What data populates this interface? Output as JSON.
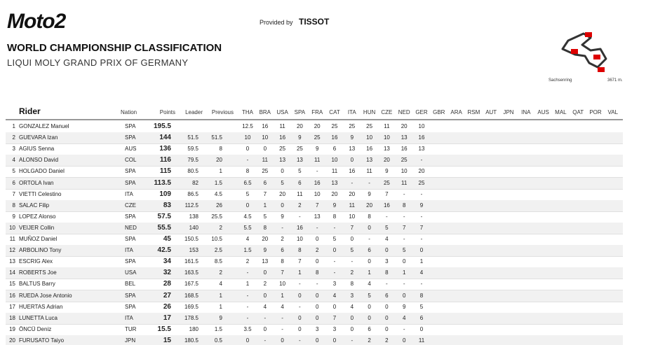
{
  "header": {
    "logo": "Moto2",
    "provided_by": "Provided by",
    "sponsor": "TISSOT",
    "title": "WORLD CHAMPIONSHIP CLASSIFICATION",
    "subtitle": "LIQUI MOLY GRAND PRIX OF GERMANY",
    "track": "Sachsenring",
    "track_length": "3671 m."
  },
  "table": {
    "columns": {
      "rider": "Rider",
      "nation": "Nation",
      "points": "Points",
      "leader": "Leader",
      "previous": "Previous",
      "races": [
        "THA",
        "BRA",
        "USA",
        "SPA",
        "FRA",
        "CAT",
        "ITA",
        "HUN",
        "CZE",
        "NED",
        "GER",
        "GBR",
        "ARA",
        "RSM",
        "AUT",
        "JPN",
        "INA",
        "AUS",
        "MAL",
        "QAT",
        "POR",
        "VAL"
      ]
    },
    "rows": [
      {
        "pos": 1,
        "rider": "GONZALEZ Manuel",
        "nation": "SPA",
        "points": 195.5,
        "results": [
          12.5,
          16,
          11,
          20,
          20,
          25,
          25,
          25,
          11,
          20,
          10
        ]
      },
      {
        "pos": 2,
        "rider": "GUEVARA Izan",
        "nation": "SPA",
        "points": 144,
        "leader": 51.5,
        "previous": 51.5,
        "results": [
          10,
          10,
          16,
          9,
          25,
          16,
          9,
          10,
          10,
          13,
          16
        ]
      },
      {
        "pos": 3,
        "rider": "AGIUS Senna",
        "nation": "AUS",
        "points": 136,
        "leader": 59.5,
        "previous": 8,
        "results": [
          0,
          0,
          25,
          25,
          9,
          6,
          13,
          16,
          13,
          16,
          13
        ]
      },
      {
        "pos": 4,
        "rider": "ALONSO David",
        "nation": "COL",
        "points": 116,
        "leader": 79.5,
        "previous": 20,
        "results": [
          "-",
          11,
          13,
          13,
          11,
          10,
          0,
          13,
          20,
          25,
          "-"
        ]
      },
      {
        "pos": 5,
        "rider": "HOLGADO Daniel",
        "nation": "SPA",
        "points": 115,
        "leader": 80.5,
        "previous": 1,
        "results": [
          8,
          25,
          0,
          5,
          "-",
          11,
          16,
          11,
          9,
          10,
          20
        ]
      },
      {
        "pos": 6,
        "rider": "ORTOLA Ivan",
        "nation": "SPA",
        "points": 113.5,
        "leader": 82,
        "previous": 1.5,
        "results": [
          6.5,
          6,
          5,
          6,
          16,
          13,
          "-",
          "-",
          25,
          11,
          25
        ]
      },
      {
        "pos": 7,
        "rider": "VIETTI Celestino",
        "nation": "ITA",
        "points": 109,
        "leader": 86.5,
        "previous": 4.5,
        "results": [
          5,
          7,
          20,
          11,
          10,
          20,
          20,
          9,
          7,
          "-",
          "-"
        ]
      },
      {
        "pos": 8,
        "rider": "SALAC Filip",
        "nation": "CZE",
        "points": 83,
        "leader": 112.5,
        "previous": 26,
        "results": [
          0,
          1,
          0,
          2,
          7,
          9,
          11,
          20,
          16,
          8,
          9
        ]
      },
      {
        "pos": 9,
        "rider": "LOPEZ Alonso",
        "nation": "SPA",
        "points": 57.5,
        "leader": 138,
        "previous": 25.5,
        "results": [
          4.5,
          5,
          9,
          "-",
          13,
          8,
          10,
          8,
          "-",
          "-",
          "-"
        ]
      },
      {
        "pos": 10,
        "rider": "VEIJER Collin",
        "nation": "NED",
        "points": 55.5,
        "leader": 140,
        "previous": 2,
        "results": [
          5.5,
          8,
          "-",
          16,
          "-",
          "-",
          7,
          0,
          5,
          7,
          7
        ]
      },
      {
        "pos": 11,
        "rider": "MUÑOZ Daniel",
        "nation": "SPA",
        "points": 45,
        "leader": 150.5,
        "previous": 10.5,
        "results": [
          4,
          20,
          2,
          10,
          0,
          5,
          0,
          "-",
          4,
          "-",
          "-"
        ]
      },
      {
        "pos": 12,
        "rider": "ARBOLINO Tony",
        "nation": "ITA",
        "points": 42.5,
        "leader": 153,
        "previous": 2.5,
        "results": [
          1.5,
          9,
          6,
          8,
          2,
          0,
          5,
          6,
          0,
          5,
          0
        ]
      },
      {
        "pos": 13,
        "rider": "ESCRIG Alex",
        "nation": "SPA",
        "points": 34,
        "leader": 161.5,
        "previous": 8.5,
        "results": [
          2,
          13,
          8,
          7,
          0,
          "-",
          "-",
          0,
          3,
          0,
          1
        ]
      },
      {
        "pos": 14,
        "rider": "ROBERTS Joe",
        "nation": "USA",
        "points": 32,
        "leader": 163.5,
        "previous": 2,
        "results": [
          "-",
          0,
          7,
          1,
          8,
          "-",
          2,
          1,
          8,
          1,
          4
        ]
      },
      {
        "pos": 15,
        "rider": "BALTUS Barry",
        "nation": "BEL",
        "points": 28,
        "leader": 167.5,
        "previous": 4,
        "results": [
          1,
          2,
          10,
          "-",
          "-",
          3,
          8,
          4,
          "-",
          "-",
          "-"
        ]
      },
      {
        "pos": 16,
        "rider": "RUEDA Jose Antonio",
        "nation": "SPA",
        "points": 27,
        "leader": 168.5,
        "previous": 1,
        "results": [
          "-",
          0,
          1,
          0,
          0,
          4,
          3,
          5,
          6,
          0,
          8
        ]
      },
      {
        "pos": 17,
        "rider": "HUERTAS Adrian",
        "nation": "SPA",
        "points": 26,
        "leader": 169.5,
        "previous": 1,
        "results": [
          "-",
          4,
          4,
          "-",
          0,
          0,
          4,
          0,
          0,
          9,
          5
        ]
      },
      {
        "pos": 18,
        "rider": "LUNETTA Luca",
        "nation": "ITA",
        "points": 17,
        "leader": 178.5,
        "previous": 9,
        "results": [
          "-",
          "-",
          "-",
          0,
          0,
          7,
          0,
          0,
          0,
          4,
          6
        ]
      },
      {
        "pos": 19,
        "rider": "ÖNCÜ Deniz",
        "nation": "TUR",
        "points": 15.5,
        "leader": 180,
        "previous": 1.5,
        "results": [
          3.5,
          0,
          "-",
          0,
          3,
          3,
          0,
          6,
          0,
          "-",
          0
        ]
      },
      {
        "pos": 20,
        "rider": "FURUSATO Taiyo",
        "nation": "JPN",
        "points": 15,
        "leader": 180.5,
        "previous": 0.5,
        "results": [
          0,
          "-",
          0,
          "-",
          0,
          0,
          "-",
          2,
          2,
          0,
          11
        ]
      }
    ]
  }
}
